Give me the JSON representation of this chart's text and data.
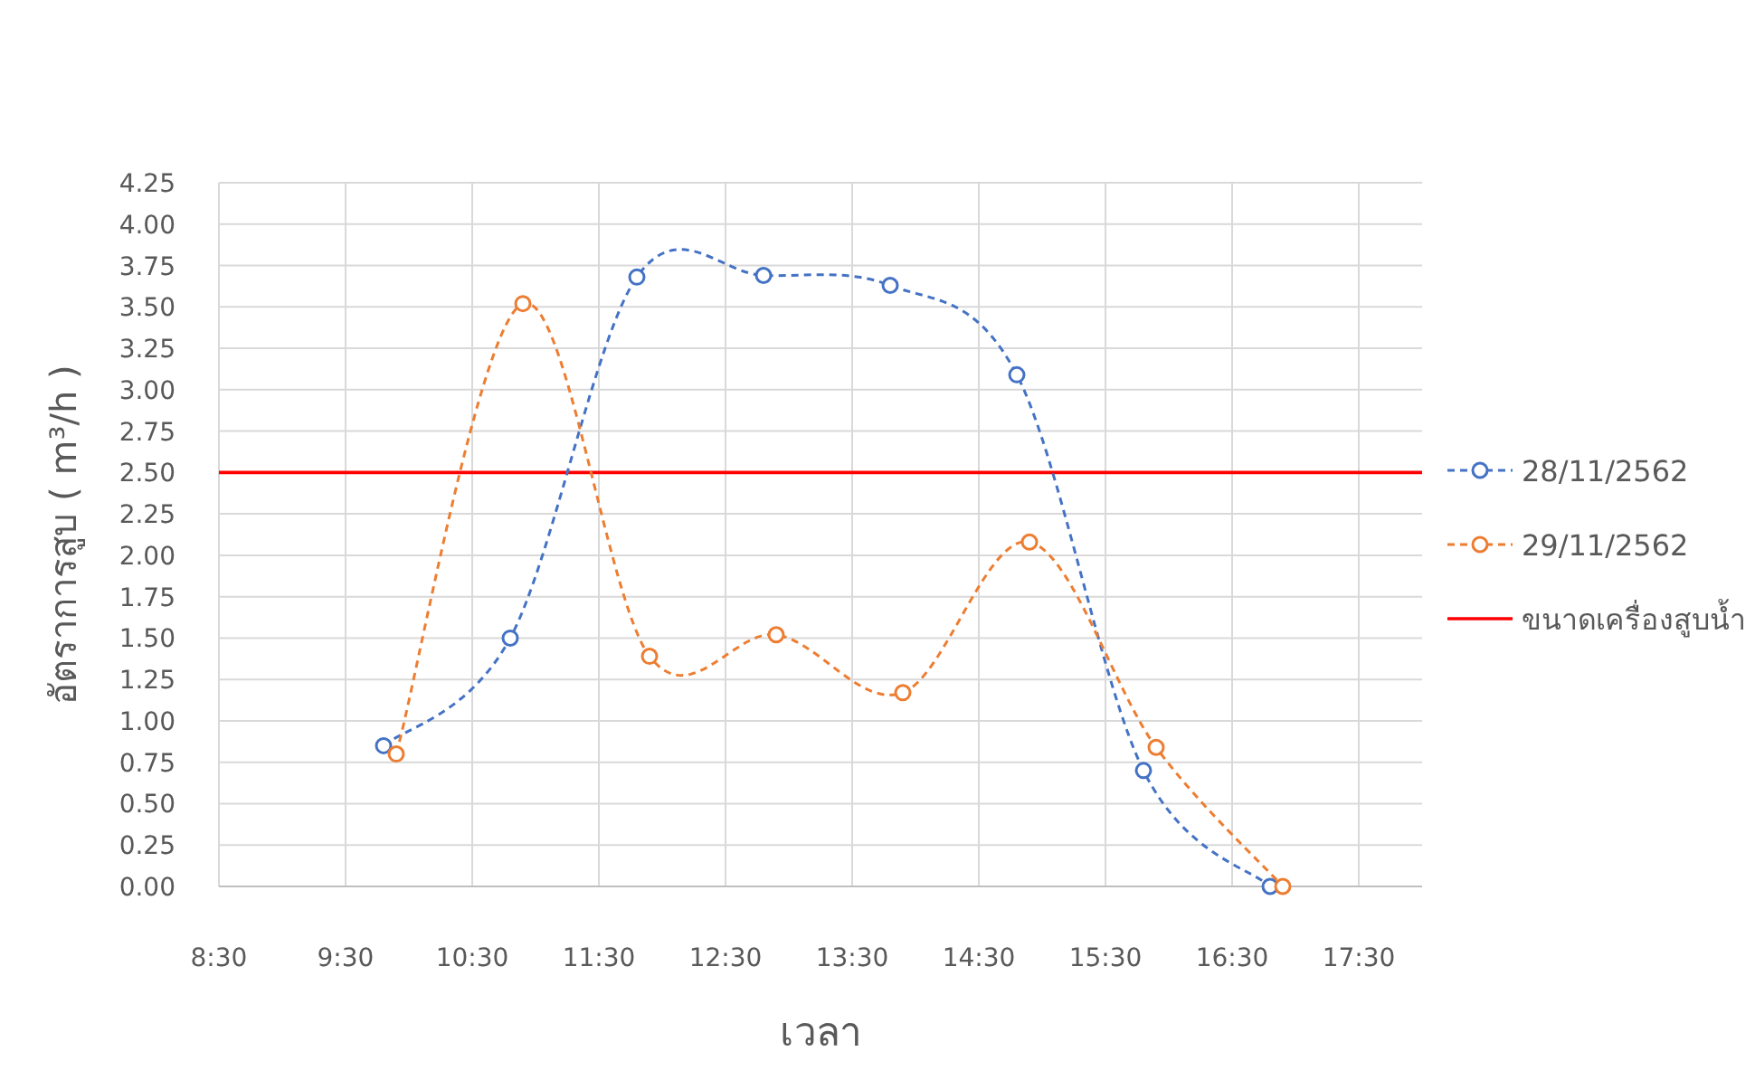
{
  "chart_data": {
    "type": "line",
    "xlabel": "เวลา",
    "ylabel": "อัตราการสูบ ( m³/h )",
    "xlim": [
      8.5,
      18.0
    ],
    "xticks": [
      {
        "value": 8.5,
        "label": "8:30"
      },
      {
        "value": 9.5,
        "label": "9:30"
      },
      {
        "value": 10.5,
        "label": "10:30"
      },
      {
        "value": 11.5,
        "label": "11:30"
      },
      {
        "value": 12.5,
        "label": "12:30"
      },
      {
        "value": 13.5,
        "label": "13:30"
      },
      {
        "value": 14.5,
        "label": "14:30"
      },
      {
        "value": 15.5,
        "label": "15:30"
      },
      {
        "value": 16.5,
        "label": "16:30"
      },
      {
        "value": 17.5,
        "label": "17:30"
      }
    ],
    "ylim": [
      0,
      4.25
    ],
    "yticks": [
      {
        "value": 0,
        "label": "0.00"
      },
      {
        "value": 0.25,
        "label": "0.25"
      },
      {
        "value": 0.5,
        "label": "0.50"
      },
      {
        "value": 0.75,
        "label": "0.75"
      },
      {
        "value": 1,
        "label": "1.00"
      },
      {
        "value": 1.25,
        "label": "1.25"
      },
      {
        "value": 1.5,
        "label": "1.50"
      },
      {
        "value": 1.75,
        "label": "1.75"
      },
      {
        "value": 2,
        "label": "2.00"
      },
      {
        "value": 2.25,
        "label": "2.25"
      },
      {
        "value": 2.5,
        "label": "2.50"
      },
      {
        "value": 2.75,
        "label": "2.75"
      },
      {
        "value": 3,
        "label": "3.00"
      },
      {
        "value": 3.25,
        "label": "3.25"
      },
      {
        "value": 3.5,
        "label": "3.50"
      },
      {
        "value": 3.75,
        "label": "3.75"
      },
      {
        "value": 4,
        "label": "4.00"
      },
      {
        "value": 4.25,
        "label": "4.25"
      }
    ],
    "series": [
      {
        "name": "28/11/2562",
        "color": "#4472c4",
        "x": [
          9.8,
          10.8,
          11.8,
          12.8,
          13.8,
          14.8,
          15.8,
          16.8
        ],
        "values": [
          0.85,
          1.5,
          3.68,
          3.69,
          3.63,
          3.09,
          0.7,
          0
        ]
      },
      {
        "name": "29/11/2562",
        "color": "#ed7d31",
        "x": [
          9.9,
          10.9,
          11.9,
          12.9,
          13.9,
          14.9,
          15.9,
          16.9
        ],
        "values": [
          0.8,
          3.52,
          1.39,
          1.52,
          1.17,
          2.08,
          0.84,
          0
        ]
      }
    ],
    "ref_lines": [
      {
        "axis": "y",
        "value": 2.5,
        "label": "ขนาดเครื่องสูบน้ำ",
        "color": "#ff0000",
        "line_style": "solid"
      }
    ],
    "marker": "circle",
    "line_style": "dashed",
    "grid": true,
    "legend": "right"
  }
}
